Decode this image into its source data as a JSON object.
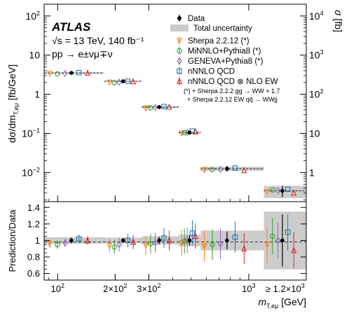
{
  "chart_data": {
    "type": "scatter",
    "experiment": "ATLAS",
    "energy_line": "√s = 13 TeV, 140 fb⁻¹",
    "process_line": "pp → e±νμ∓ν",
    "ylabel": "dσ/dmT,eμ [fb/GeV]",
    "ylabel_main": "dσ/dm",
    "ylabel_sub": "T,eμ",
    "ylabel_unit": " [fb/GeV]",
    "ylabel_right": "σ [fb]",
    "ylabel_right_main": "σ",
    "ylabel_right_unit": " [fb]",
    "ratio_ylabel": "Prediction/Data",
    "xlabel": "mT,eμ [GeV]",
    "xlabel_main": "m",
    "xlabel_sub": "T,eμ",
    "xlabel_unit": " [GeV]",
    "x_scale": "log",
    "x_tick_labels": [
      {
        "x": 100,
        "label": "10²"
      },
      {
        "x": 200,
        "label": "2×10²"
      },
      {
        "x": 300,
        "label": "3×10²"
      },
      {
        "x": 1000,
        "label": "10³"
      },
      {
        "x": 1500,
        "label": "≥ 1.2×10³"
      }
    ],
    "y_scale": "log",
    "ylim": [
      0.0018,
      200
    ],
    "y_tick_labels": [
      {
        "y": 100,
        "base": "10",
        "exp": "2"
      },
      {
        "y": 10,
        "base": "10",
        "exp": ""
      },
      {
        "y": 1,
        "base": "1",
        "exp": ""
      },
      {
        "y": 0.1,
        "base": "10",
        "exp": "−1"
      },
      {
        "y": 0.01,
        "base": "10",
        "exp": "−2"
      }
    ],
    "y_right_tick_labels": [
      {
        "y": 100,
        "base": "10",
        "exp": "4"
      },
      {
        "y": 10,
        "base": "10",
        "exp": "3"
      },
      {
        "y": 1,
        "base": "10",
        "exp": "2"
      },
      {
        "y": 0.1,
        "base": "10",
        "exp": ""
      },
      {
        "y": 0.01,
        "base": "1",
        "exp": ""
      }
    ],
    "ratio_ylim": [
      0.52,
      1.47
    ],
    "ratio_y_ticks": [
      "0.6",
      "0.8",
      "1",
      "1.2",
      "1.4"
    ],
    "ratio_y_values": [
      0.6,
      0.8,
      1.0,
      1.2,
      1.4
    ],
    "bins": [
      {
        "low": 85,
        "high": 175,
        "center": 118
      },
      {
        "low": 175,
        "high": 275,
        "center": 220
      },
      {
        "low": 275,
        "high": 430,
        "center": 340
      },
      {
        "low": 430,
        "high": 560,
        "center": 490
      },
      {
        "low": 560,
        "high": 1200,
        "center": 770
      },
      {
        "low": 1200,
        "high": 2000,
        "center": 1500
      }
    ],
    "data_values": [
      3.5,
      2.15,
      0.47,
      0.105,
      0.0125,
      0.0034
    ],
    "total_uncertainty_rel": [
      0.04,
      0.035,
      0.05,
      0.07,
      0.12,
      0.35
    ],
    "legend": {
      "data": "Data",
      "uncertainty": "Total uncertainty",
      "note_line1": "(*) + Sherpa 2.2.2 gg → WW × 1.7",
      "note_line2": "+ Sherpa 2.2.12 EW qq̄ → WWjj"
    },
    "series": [
      {
        "name": "Sherpa 2.2.12 (*)",
        "color": "#ff7f0e",
        "marker": "triangle-down",
        "ratio": [
          0.96,
          0.94,
          0.94,
          0.97,
          0.93,
          0.95
        ]
      },
      {
        "name": "MiNNLO+Pythia8 (*)",
        "color": "#2ca02c",
        "marker": "circle",
        "ratio": [
          0.95,
          0.92,
          0.96,
          0.99,
          0.95,
          1.05
        ]
      },
      {
        "name": "GENEVA+Pythia8 (*)",
        "color": "#9467bd",
        "marker": "diamond",
        "ratio": [
          0.97,
          0.95,
          0.97,
          1.0,
          0.96,
          1.0
        ]
      },
      {
        "name": "nNNLO QCD",
        "color": "#1f77b4",
        "marker": "square",
        "ratio": [
          1.02,
          1.0,
          1.03,
          1.09,
          1.04,
          1.1
        ]
      },
      {
        "name": "nNNLO QCD ⊗ NLO EW",
        "color": "#d62728",
        "marker": "triangle-up",
        "ratio": [
          1.0,
          0.98,
          1.0,
          1.05,
          0.9,
          0.88
        ]
      }
    ]
  }
}
